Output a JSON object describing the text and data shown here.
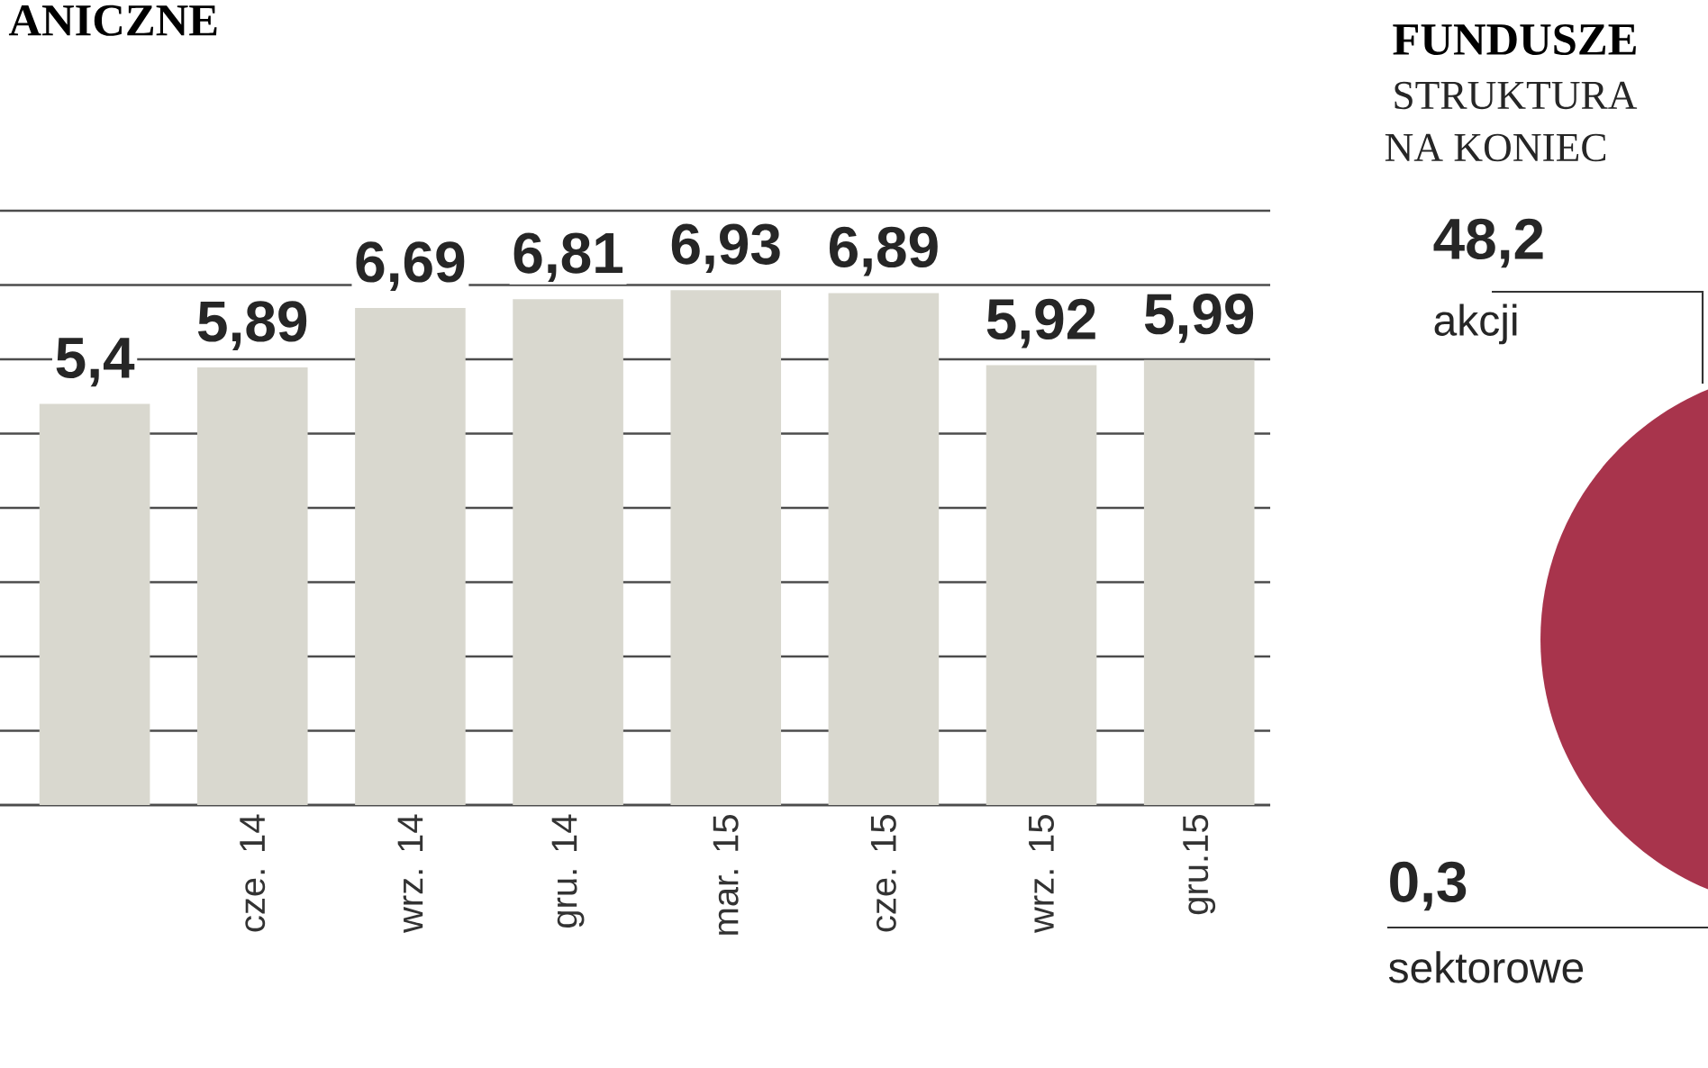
{
  "chart_data": [
    {
      "type": "bar",
      "title": "ANICZNE",
      "categories": [
        null,
        "cze. 14",
        "wrz. 14",
        "gru. 14",
        "mar. 15",
        "cze. 15",
        "wrz. 15",
        "gru.15"
      ],
      "values": [
        5.4,
        5.89,
        6.69,
        6.81,
        6.93,
        6.89,
        5.92,
        5.99
      ],
      "value_labels": [
        "5,4",
        "5,89",
        "6,69",
        "6,81",
        "6,93",
        "6,89",
        "5,92",
        "5,99"
      ],
      "color": "#d9d8cf",
      "ylim": [
        0,
        8
      ],
      "yticks": [
        {
          "value": 0,
          "label": null
        },
        {
          "value": 1,
          "label": null
        },
        {
          "value": 2,
          "label": null
        },
        {
          "value": 3,
          "label": null
        },
        {
          "value": 4,
          "label": null
        },
        {
          "value": 5,
          "label": null
        },
        {
          "value": 6,
          "label": null
        },
        {
          "value": 7,
          "label": null
        },
        {
          "value": 8,
          "label": null
        }
      ],
      "grid": "y",
      "tick_labels": "x"
    },
    {
      "type": "other",
      "title": "FUNDUSZE",
      "subtitle": "STRUKTURA",
      "annotations": [
        "NA KONIEC",
        "48,2",
        "akcji",
        "0,3",
        "sektorowe"
      ]
    }
  ]
}
